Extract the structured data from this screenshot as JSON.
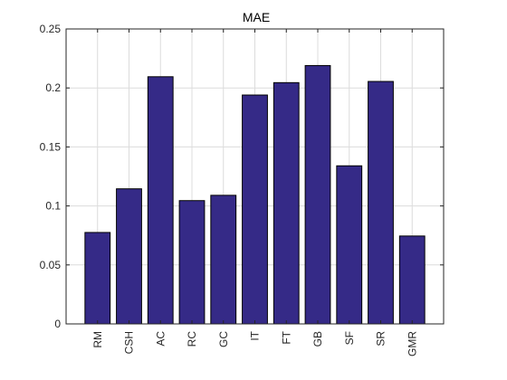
{
  "chart_data": {
    "type": "bar",
    "title": "MAE",
    "xlabel": "",
    "ylabel": "",
    "categories": [
      "RM",
      "CSH",
      "AC",
      "RC",
      "GC",
      "IT",
      "FT",
      "GB",
      "SF",
      "SR",
      "GMR"
    ],
    "values": [
      0.0775,
      0.1145,
      0.2095,
      0.1045,
      0.109,
      0.194,
      0.2045,
      0.219,
      0.134,
      0.2055,
      0.0745
    ],
    "ylim": [
      0,
      0.25
    ],
    "yticks": [
      0,
      0.05,
      0.1,
      0.15,
      0.2,
      0.25
    ],
    "ytick_labels": [
      "0",
      "0.05",
      "0.1",
      "0.15",
      "0.2",
      "0.25"
    ],
    "grid": true,
    "legend": "none",
    "colors": {
      "bar": "#352a87",
      "bar_edge": "#000000",
      "grid": "#dcdcdc",
      "axis": "#262626"
    }
  }
}
